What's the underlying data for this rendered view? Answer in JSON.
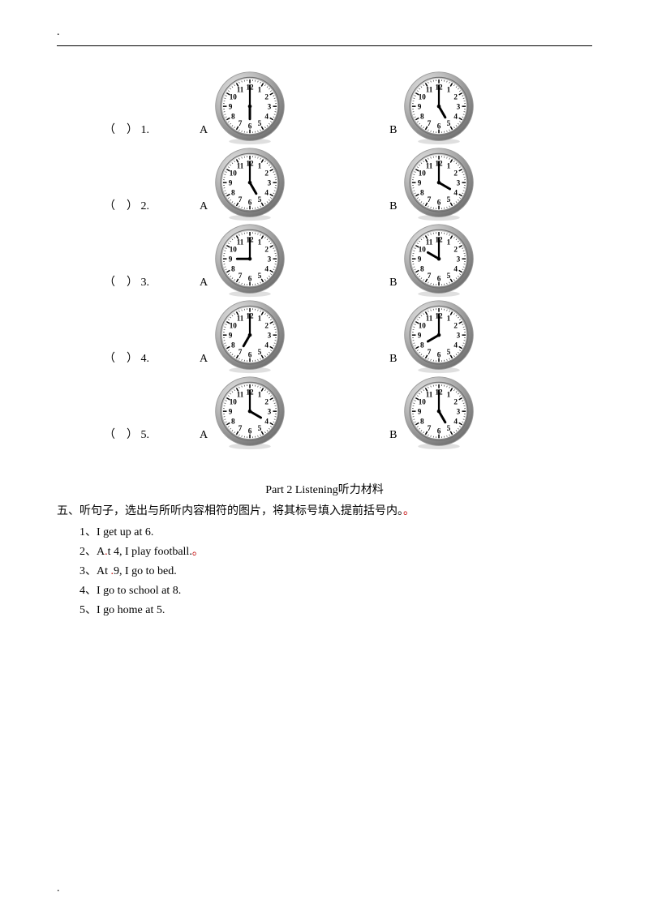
{
  "clock_style": {
    "bezel_outer": "#9c9c9c",
    "bezel_light": "#f0f0f0",
    "bezel_mid": "#bdbdbd",
    "bezel_dark": "#707070",
    "face": "#ffffff",
    "tick": "#000000",
    "num_color": "#000000",
    "hand_color": "#000000",
    "center_color": "#000000"
  },
  "questions": [
    {
      "num": "1.",
      "letterA": "A",
      "letterB": "B",
      "timeA": {
        "h": 6,
        "m": 0
      },
      "timeB": {
        "h": 5,
        "m": 0
      }
    },
    {
      "num": "2.",
      "letterA": "A",
      "letterB": "B",
      "timeA": {
        "h": 5,
        "m": 0
      },
      "timeB": {
        "h": 4,
        "m": 0
      }
    },
    {
      "num": "3.",
      "letterA": "A",
      "letterB": "B",
      "timeA": {
        "h": 9,
        "m": 0
      },
      "timeB": {
        "h": 10,
        "m": 0
      }
    },
    {
      "num": "4.",
      "letterA": "A",
      "letterB": "B",
      "timeA": {
        "h": 7,
        "m": 0
      },
      "timeB": {
        "h": 8,
        "m": 0
      }
    },
    {
      "num": "5.",
      "letterA": "A",
      "letterB": "B",
      "timeA": {
        "h": 4,
        "m": 0
      },
      "timeB": {
        "h": 5,
        "m": 0
      }
    }
  ],
  "bracket_open": "（",
  "bracket_space": "    ",
  "bracket_close": "）",
  "period_mark": ".",
  "section_title_left": "Part 2 Listening",
  "section_title_right": "听力材料",
  "section_desc_prefix": "五、听句子，选出与所听内容相符的图片，将其标号填入提前括号内。",
  "section_desc_mark": "。",
  "sentences": [
    {
      "text": "1、I get up at 6."
    },
    {
      "text_pre": "2、A",
      "mark": ".",
      "text_post": "t 4, I play football.",
      "end_mark": "。"
    },
    {
      "text_pre": "3、At ",
      "mark": ".",
      "text_post": "9, I go to bed."
    },
    {
      "text": "4、I go to school at 8."
    },
    {
      "text": "5、I go home at 5."
    }
  ]
}
